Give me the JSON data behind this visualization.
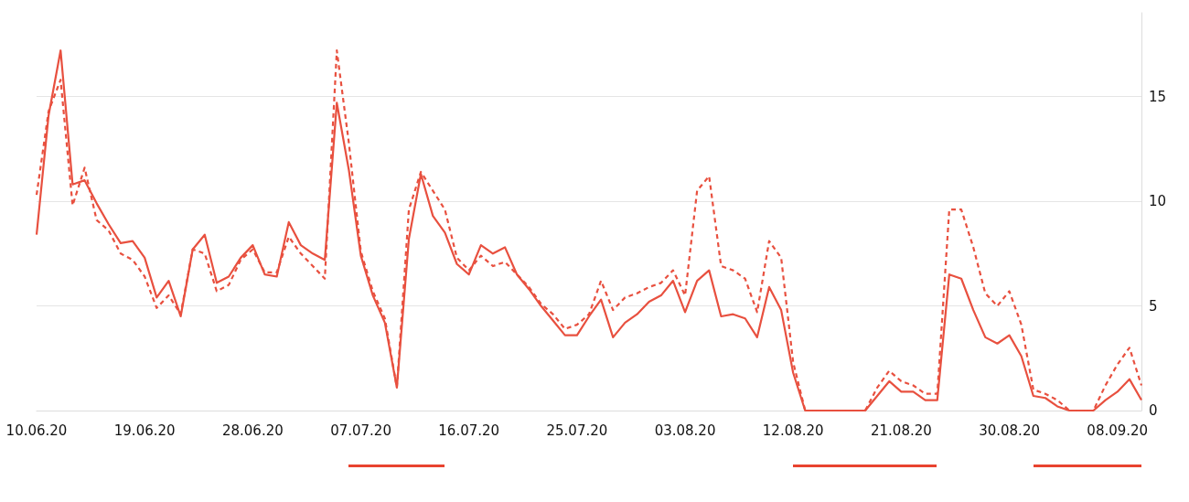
{
  "chart_data": {
    "type": "line",
    "x": [
      "--06-10",
      "--06-11",
      "--06-12",
      "--06-13",
      "--06-14",
      "--06-15",
      "--06-16",
      "--06-17",
      "--06-18",
      "--06-19",
      "--06-20",
      "--06-21",
      "--06-22",
      "--06-23",
      "--06-24",
      "--06-25",
      "--06-26",
      "--06-27",
      "--06-28",
      "--06-29",
      "--06-30",
      "--07-01",
      "--07-02",
      "--07-03",
      "--07-04",
      "--07-05",
      "--07-06",
      "--07-07",
      "--07-08",
      "--07-09",
      "--07-10",
      "--07-11",
      "--07-12",
      "--07-13",
      "--07-14",
      "--07-15",
      "--07-16",
      "--07-17",
      "--07-18",
      "--07-19",
      "--07-20",
      "--07-21",
      "--07-22",
      "--07-23",
      "--07-24",
      "--07-25",
      "--07-26",
      "--07-27",
      "--07-28",
      "--07-29",
      "--07-30",
      "--07-31",
      "--08-01",
      "--08-02",
      "--08-03",
      "--08-04",
      "--08-05",
      "--08-06",
      "--08-07",
      "--08-08",
      "--08-09",
      "--08-10",
      "--08-11",
      "--08-12",
      "--08-13",
      "--08-14",
      "--08-15",
      "--08-16",
      "--08-17",
      "--08-18",
      "--08-19",
      "--08-20",
      "--08-21",
      "--08-22",
      "--08-23",
      "--08-24",
      "--08-25",
      "--08-26",
      "--08-27",
      "--08-28",
      "--08-29",
      "--08-30",
      "--08-31",
      "--09-01",
      "--09-02",
      "--09-03",
      "--09-04",
      "--09-05",
      "--09-06",
      "--09-07",
      "--09-08",
      "--09-09",
      "--09-10"
    ],
    "series": [
      {
        "color": "#e8503f",
        "line_style": "solid",
        "values": [
          8.4,
          14.1,
          17.2,
          10.8,
          11.0,
          9.9,
          8.9,
          8.0,
          8.1,
          7.3,
          5.4,
          6.2,
          4.5,
          7.7,
          8.4,
          6.1,
          6.4,
          7.3,
          7.9,
          6.5,
          6.4,
          9.0,
          7.9,
          7.5,
          7.2,
          14.7,
          11.5,
          7.4,
          5.5,
          4.2,
          1.1,
          8.2,
          11.3,
          9.3,
          8.5,
          7.0,
          6.5,
          7.9,
          7.5,
          7.8,
          6.5,
          5.8,
          5.0,
          4.3,
          3.6,
          3.6,
          4.5,
          5.3,
          3.5,
          4.2,
          4.6,
          5.2,
          5.5,
          6.2,
          4.7,
          6.2,
          6.7,
          4.5,
          4.6,
          4.4,
          3.5,
          5.9,
          4.8,
          1.8,
          0,
          0,
          0,
          0,
          0,
          0,
          0.7,
          1.4,
          0.9,
          0.9,
          0.5,
          0.5,
          6.5,
          6.3,
          4.8,
          3.5,
          3.2,
          3.6,
          2.6,
          0.7,
          0.6,
          0.2,
          0,
          0,
          0,
          0.5,
          0.9,
          1.5,
          0.5
        ]
      },
      {
        "color": "#e8503f",
        "line_style": "dashed",
        "values": [
          10.3,
          14.3,
          15.8,
          9.8,
          11.6,
          9.1,
          8.6,
          7.5,
          7.2,
          6.4,
          4.9,
          5.5,
          4.6,
          7.7,
          7.5,
          5.7,
          6.0,
          7.2,
          7.7,
          6.6,
          6.6,
          8.3,
          7.5,
          6.9,
          6.3,
          17.2,
          12.8,
          7.6,
          5.7,
          4.4,
          1.1,
          9.6,
          11.4,
          10.5,
          9.6,
          7.3,
          6.7,
          7.4,
          6.9,
          7.1,
          6.5,
          5.9,
          5.1,
          4.6,
          3.9,
          4.1,
          4.6,
          6.2,
          4.8,
          5.4,
          5.6,
          5.9,
          6.1,
          6.7,
          5.5,
          10.5,
          11.2,
          6.9,
          6.7,
          6.3,
          4.7,
          8.1,
          7.3,
          2.3,
          0,
          0,
          0,
          0,
          0,
          0,
          1.1,
          1.9,
          1.4,
          1.2,
          0.8,
          0.8,
          9.6,
          9.6,
          7.8,
          5.6,
          5.0,
          5.7,
          4.1,
          1.0,
          0.8,
          0.5,
          0,
          0,
          0,
          1.2,
          2.2,
          3.0,
          1.2
        ]
      }
    ],
    "xlim": [
      "--06-10",
      "--09-10"
    ],
    "xticks": [
      {
        "value": "--06-10",
        "label": "10.06.20"
      },
      {
        "value": "--06-19",
        "label": "19.06.20"
      },
      {
        "value": "--06-28",
        "label": "28.06.20"
      },
      {
        "value": "--07-07",
        "label": "07.07.20"
      },
      {
        "value": "--07-16",
        "label": "16.07.20"
      },
      {
        "value": "--07-25",
        "label": "25.07.20"
      },
      {
        "value": "--08-03",
        "label": "03.08.20"
      },
      {
        "value": "--08-12",
        "label": "12.08.20"
      },
      {
        "value": "--08-21",
        "label": "21.08.20"
      },
      {
        "value": "--08-30",
        "label": "30.08.20"
      },
      {
        "value": "--09-08",
        "label": "08.09.20"
      }
    ],
    "ylim": [
      0,
      19
    ],
    "yticks": [
      0,
      5,
      10,
      15
    ],
    "grid": "y",
    "marker": "none"
  }
}
